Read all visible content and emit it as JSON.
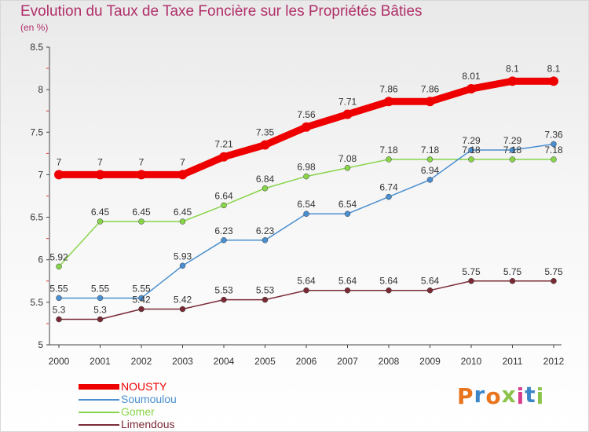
{
  "title": "Evolution du Taux de Taxe Foncière sur les Propriétés Bâties",
  "subtitle": "(en %)",
  "chart_data": {
    "type": "line",
    "title": "Evolution du Taux de Taxe Foncière sur les Propriétés Bâties",
    "ylabel": "(en %)",
    "xlabel": "",
    "x": [
      "2000",
      "2001",
      "2002",
      "2003",
      "2004",
      "2005",
      "2006",
      "2007",
      "2008",
      "2009",
      "2010",
      "2011",
      "2012"
    ],
    "ylim": [
      5,
      8.5
    ],
    "yticks": [
      "5",
      "5.5",
      "6",
      "6.5",
      "7",
      "7.5",
      "8",
      "8.5"
    ],
    "grid": false,
    "legend_position": "bottom-left",
    "series": [
      {
        "name": "NOUSTY",
        "color": "#ee0000",
        "values": [
          7,
          7,
          7,
          7,
          7.21,
          7.35,
          7.56,
          7.71,
          7.86,
          7.86,
          8.01,
          8.1,
          8.1
        ],
        "labels": [
          "7",
          "7",
          "7",
          "7",
          "7.21",
          "7.35",
          "7.56",
          "7.71",
          "7.86",
          "7.86",
          "8.01",
          "8.1",
          "8.1"
        ]
      },
      {
        "name": "Soumoulou",
        "color": "#4a8fcf",
        "values": [
          5.55,
          5.55,
          5.55,
          5.93,
          6.23,
          6.23,
          6.54,
          6.54,
          6.74,
          6.94,
          7.29,
          7.29,
          7.36
        ],
        "labels": [
          "5.55",
          "5.55",
          "5.55",
          "5.93",
          "6.23",
          "6.23",
          "6.54",
          "6.54",
          "6.74",
          "6.94",
          "7.29",
          "7.29",
          "7.36"
        ]
      },
      {
        "name": "Gomer",
        "color": "#88d44a",
        "values": [
          5.92,
          6.45,
          6.45,
          6.45,
          6.64,
          6.84,
          6.98,
          7.08,
          7.18,
          7.18,
          7.18,
          7.18,
          7.18
        ],
        "labels": [
          "5.92",
          "6.45",
          "6.45",
          "6.45",
          "6.64",
          "6.84",
          "6.98",
          "7.08",
          "7.18",
          "7.18",
          "7.18",
          "7.18",
          "7.18"
        ]
      },
      {
        "name": "Limendous",
        "color": "#7a2a35",
        "values": [
          5.3,
          5.3,
          5.42,
          5.42,
          5.53,
          5.53,
          5.64,
          5.64,
          5.64,
          5.64,
          5.75,
          5.75,
          5.75
        ],
        "labels": [
          "5.3",
          "5.3",
          "5.42",
          "5.42",
          "5.53",
          "5.53",
          "5.64",
          "5.64",
          "5.64",
          "5.64",
          "5.75",
          "5.75",
          "5.75"
        ]
      }
    ]
  },
  "logo": {
    "text": "Proxiti",
    "colors": [
      "#e8741e",
      "#3c86c8",
      "#e8741e",
      "#8bc34a",
      "#d83c8c",
      "#3c86c8",
      "#8bc34a"
    ]
  }
}
